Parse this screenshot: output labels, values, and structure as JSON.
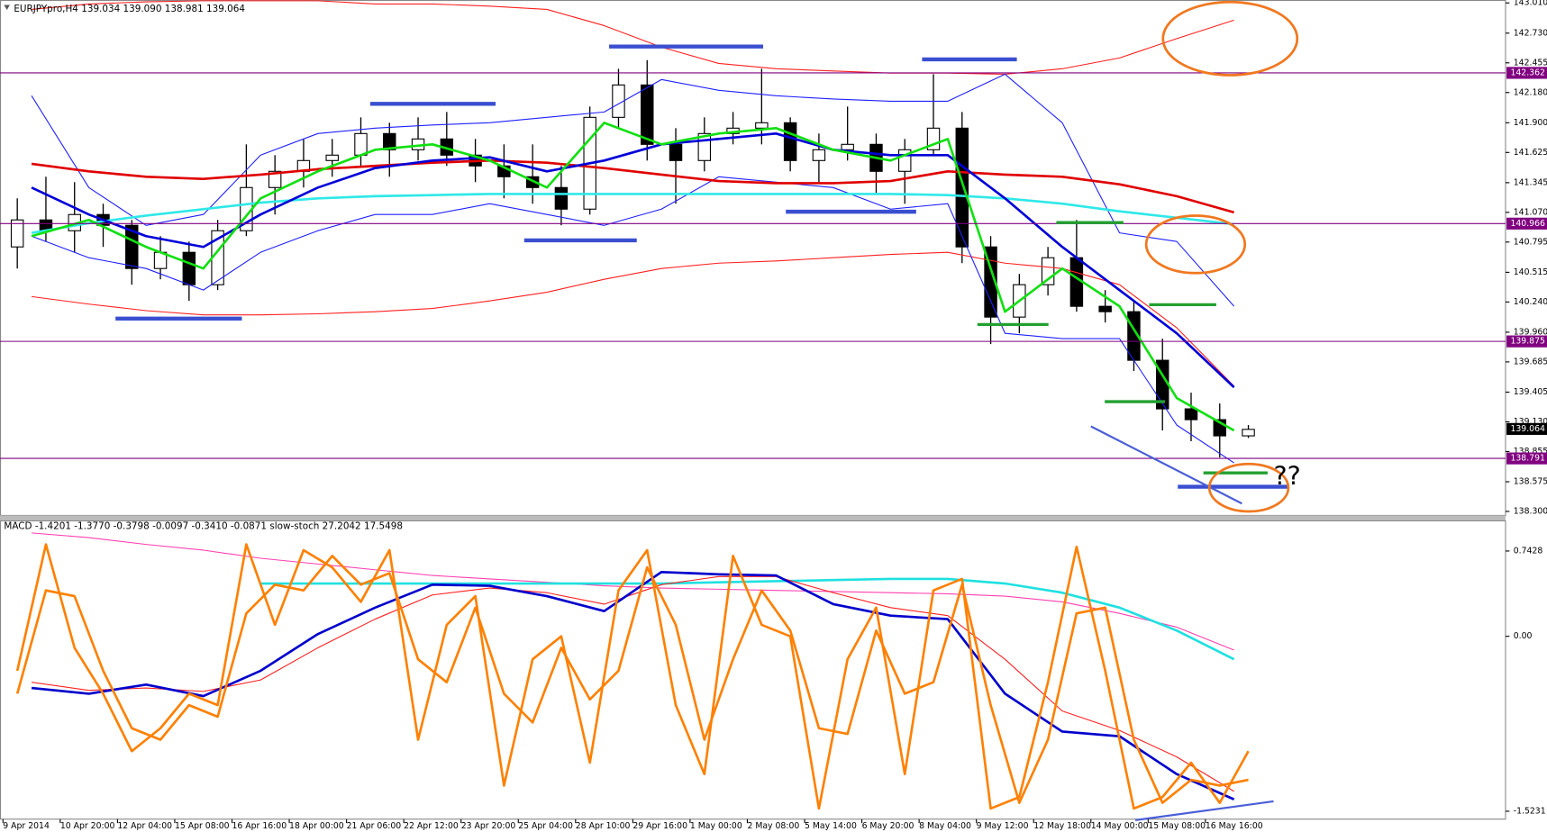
{
  "chart_data": [
    {
      "type": "candlestick",
      "title": "EURJPYpro,H4  139.034 139.090 138.981 139.064",
      "categories": [
        "9 Apr 2014",
        "10 Apr 20:00",
        "12 Apr 04:00",
        "15 Apr 08:00",
        "16 Apr 16:00",
        "18 Apr 00:00",
        "21 Apr 06:00",
        "22 Apr 12:00",
        "23 Apr 20:00",
        "25 Apr 04:00",
        "28 Apr 10:00",
        "29 Apr 16:00",
        "1 May 00:00",
        "2 May 08:00",
        "5 May 14:00",
        "6 May 20:00",
        "8 May 04:00",
        "9 May 12:00",
        "12 May 18:00",
        "14 May 00:00",
        "15 May 08:00",
        "16 May 16:00"
      ],
      "open": [
        140.75,
        141.0,
        140.9,
        141.05,
        140.95,
        140.55,
        140.7,
        140.4,
        140.9,
        141.3,
        141.45,
        141.55,
        141.6,
        141.8,
        141.65,
        141.75,
        141.6,
        141.5,
        141.4,
        141.3,
        141.1,
        141.95,
        142.25,
        141.7,
        141.55,
        141.8,
        141.85,
        141.9,
        141.55,
        141.65,
        141.7,
        141.45,
        141.65,
        141.85,
        140.75,
        140.1,
        140.4,
        140.65,
        140.2,
        140.15,
        139.7,
        139.25,
        139.15,
        139.0
      ],
      "high": [
        141.2,
        141.4,
        141.35,
        141.15,
        141.0,
        140.85,
        140.8,
        141.0,
        141.7,
        141.6,
        141.75,
        141.75,
        141.95,
        141.9,
        141.95,
        142.0,
        141.75,
        141.7,
        141.7,
        141.5,
        142.05,
        142.4,
        142.48,
        141.85,
        141.95,
        142.0,
        142.4,
        141.95,
        141.8,
        142.05,
        141.8,
        141.75,
        142.35,
        142.0,
        140.85,
        140.5,
        140.75,
        141.0,
        140.35,
        140.25,
        139.9,
        139.4,
        139.3,
        139.1
      ],
      "low": [
        140.55,
        140.8,
        140.7,
        140.75,
        140.4,
        140.45,
        140.25,
        140.35,
        140.85,
        141.05,
        141.3,
        141.4,
        141.5,
        141.4,
        141.55,
        141.5,
        141.35,
        141.2,
        141.15,
        140.95,
        141.05,
        141.85,
        141.55,
        141.15,
        141.45,
        141.7,
        141.7,
        141.45,
        141.35,
        141.55,
        141.25,
        141.15,
        141.6,
        140.6,
        139.85,
        139.95,
        140.3,
        140.15,
        140.05,
        139.6,
        139.05,
        138.95,
        138.8,
        138.98
      ],
      "close": [
        141.0,
        140.9,
        141.05,
        140.95,
        140.55,
        140.7,
        140.4,
        140.9,
        141.3,
        141.45,
        141.55,
        141.6,
        141.8,
        141.65,
        141.75,
        141.6,
        141.5,
        141.4,
        141.3,
        141.1,
        141.95,
        142.25,
        141.7,
        141.55,
        141.8,
        141.85,
        141.9,
        141.55,
        141.65,
        141.7,
        141.45,
        141.65,
        141.85,
        140.75,
        140.1,
        140.4,
        140.65,
        140.2,
        140.15,
        139.7,
        139.25,
        139.15,
        139.0,
        139.06
      ],
      "series": [
        {
          "color": "#ff2020",
          "line_style": "thin",
          "values": [
            142.95,
            143.0,
            143.02,
            143.03,
            143.03,
            143.03,
            143.0,
            143.0,
            142.98,
            142.95,
            142.8,
            142.6,
            142.45,
            142.4,
            142.38,
            142.36,
            142.36,
            142.35,
            142.4,
            142.5,
            142.68,
            142.85
          ]
        },
        {
          "color": "#ff2020",
          "line_style": "thin",
          "values": [
            140.29,
            140.22,
            140.16,
            140.12,
            140.12,
            140.13,
            140.15,
            140.18,
            140.25,
            140.33,
            140.45,
            140.55,
            140.6,
            140.62,
            140.65,
            140.68,
            140.7,
            140.6,
            140.55,
            140.4,
            140.0,
            139.46
          ]
        },
        {
          "color": "#2020ff",
          "line_style": "thin",
          "values": [
            142.15,
            141.3,
            140.95,
            141.05,
            141.6,
            141.8,
            141.85,
            141.88,
            141.9,
            141.95,
            142.0,
            142.3,
            142.2,
            142.15,
            142.12,
            142.1,
            142.1,
            142.35,
            141.9,
            140.88,
            140.8,
            140.2
          ]
        },
        {
          "color": "#2020ff",
          "line_style": "thin",
          "values": [
            140.85,
            140.65,
            140.55,
            140.35,
            140.7,
            140.9,
            141.05,
            141.05,
            141.15,
            141.05,
            140.95,
            141.1,
            141.4,
            141.35,
            141.3,
            141.1,
            141.15,
            139.95,
            139.9,
            139.9,
            139.1,
            138.75
          ]
        },
        {
          "color": "#e00000",
          "line_style": "thick",
          "values": [
            141.52,
            141.45,
            141.4,
            141.38,
            141.42,
            141.47,
            141.5,
            141.53,
            141.55,
            141.53,
            141.48,
            141.42,
            141.36,
            141.34,
            141.34,
            141.36,
            141.45,
            141.42,
            141.4,
            141.33,
            141.22,
            141.07
          ]
        },
        {
          "color": "#30e8e8",
          "line_style": "thick",
          "values": [
            140.88,
            140.97,
            141.04,
            141.1,
            141.16,
            141.2,
            141.22,
            141.23,
            141.24,
            141.24,
            141.24,
            141.24,
            141.24,
            141.24,
            141.24,
            141.24,
            141.23,
            141.2,
            141.15,
            141.08,
            141.02,
            140.96
          ]
        },
        {
          "color": "#0000d8",
          "line_style": "thick",
          "values": [
            141.3,
            141.05,
            140.85,
            140.75,
            141.05,
            141.3,
            141.48,
            141.55,
            141.58,
            141.45,
            141.55,
            141.7,
            141.75,
            141.8,
            141.65,
            141.6,
            141.6,
            141.2,
            140.75,
            140.35,
            139.95,
            139.45
          ]
        },
        {
          "color": "#10e010",
          "line_style": "thick",
          "values": [
            140.85,
            141.0,
            140.75,
            140.55,
            141.2,
            141.45,
            141.65,
            141.7,
            141.55,
            141.3,
            141.9,
            141.7,
            141.8,
            141.85,
            141.65,
            141.55,
            141.75,
            140.15,
            140.55,
            140.2,
            139.35,
            139.05
          ]
        }
      ],
      "levels": [
        142.362,
        140.966,
        139.875,
        138.791
      ],
      "level_color": "#800080",
      "last": 139.064,
      "annotation": "??",
      "ylim": [
        138.263,
        143.037
      ],
      "yticks": [
        {
          "value": 143.01,
          "label": "143.010"
        },
        {
          "value": 142.73,
          "label": "142.730"
        },
        142.455,
        {
          "value": 142.18,
          "label": "142.180"
        },
        {
          "value": 141.9,
          "label": "141.900"
        },
        141.625,
        141.345,
        {
          "value": 141.07,
          "label": "141.070"
        },
        140.795,
        140.515,
        {
          "value": 140.24,
          "label": "140.240"
        },
        {
          "value": 139.96,
          "label": "139.960"
        },
        139.685,
        139.405,
        {
          "value": 139.13,
          "label": "139.130"
        },
        138.855,
        138.575,
        {
          "value": 138.3,
          "label": "138.300"
        }
      ]
    },
    {
      "type": "line",
      "title": "MACD -1.4201 -1.3770 -0.3798 -0.0097 -0.3410 -0.0871  slow-stoch 27.2042 17.5498",
      "series": [
        {
          "color": "#ff40b0",
          "line_style": "thin",
          "values": [
            0.9,
            0.86,
            0.8,
            0.75,
            0.68,
            0.63,
            0.58,
            0.53,
            0.5,
            0.47,
            0.44,
            0.42,
            0.41,
            0.4,
            0.39,
            0.38,
            0.37,
            0.35,
            0.3,
            0.2,
            0.08,
            -0.12
          ]
        },
        {
          "color": "#20e0e0",
          "line_style": "thick",
          "values": [
            null,
            null,
            null,
            null,
            0.46,
            0.46,
            0.46,
            0.46,
            0.46,
            0.46,
            0.46,
            0.46,
            0.47,
            0.48,
            0.49,
            0.5,
            0.5,
            0.46,
            0.38,
            0.25,
            0.05,
            -0.2
          ]
        },
        {
          "color": "#ff2020",
          "line_style": "thin",
          "values": [
            -0.4,
            -0.47,
            -0.45,
            -0.48,
            -0.38,
            -0.1,
            0.15,
            0.36,
            0.42,
            0.38,
            0.28,
            0.45,
            0.52,
            0.52,
            0.38,
            0.25,
            0.18,
            -0.2,
            -0.65,
            -0.82,
            -1.05,
            -1.35
          ]
        },
        {
          "color": "#0000cc",
          "line_style": "thick",
          "values": [
            -0.45,
            -0.5,
            -0.42,
            -0.52,
            -0.3,
            0.02,
            0.25,
            0.45,
            0.44,
            0.35,
            0.22,
            0.56,
            0.54,
            0.53,
            0.28,
            0.18,
            0.15,
            -0.5,
            -0.83,
            -0.87,
            -1.2,
            -1.42
          ]
        },
        {
          "color": "#ff8000",
          "line_style": "thick",
          "values": [
            -0.3,
            0.8,
            -0.1,
            -0.5,
            -1.0,
            -0.8,
            -0.5,
            -0.6,
            0.8,
            0.1,
            0.75,
            0.6,
            0.3,
            0.75,
            -0.9,
            0.1,
            0.35,
            -1.3,
            -0.2,
            0.0,
            -1.1,
            0.4,
            0.75,
            -0.6,
            -1.2,
            0.7,
            0.1,
            0.0,
            -1.5,
            -0.2,
            0.25,
            -1.2,
            0.4,
            0.5,
            -1.5,
            -1.4,
            -0.4,
            0.78,
            -0.3,
            -1.5,
            -1.4,
            -1.1,
            -1.45,
            -1.0
          ]
        },
        {
          "color": "#ff8000",
          "line_style": "thick",
          "values": [
            -0.5,
            0.4,
            0.35,
            -0.3,
            -0.8,
            -0.9,
            -0.6,
            -0.7,
            0.2,
            0.45,
            0.4,
            0.7,
            0.45,
            0.55,
            -0.2,
            -0.4,
            0.25,
            -0.5,
            -0.75,
            -0.1,
            -0.55,
            -0.3,
            0.6,
            0.1,
            -0.9,
            -0.2,
            0.4,
            0.05,
            -0.8,
            -0.85,
            0.05,
            -0.5,
            -0.4,
            0.45,
            -0.6,
            -1.45,
            -0.9,
            0.2,
            0.25,
            -0.9,
            -1.45,
            -1.25,
            -1.3,
            -1.25
          ]
        }
      ],
      "ylim": [
        -1.592,
        1.001
      ],
      "yticks": [
        0.7428,
        {
          "value": 0,
          "label": "0.00"
        },
        -1.5231
      ]
    }
  ]
}
